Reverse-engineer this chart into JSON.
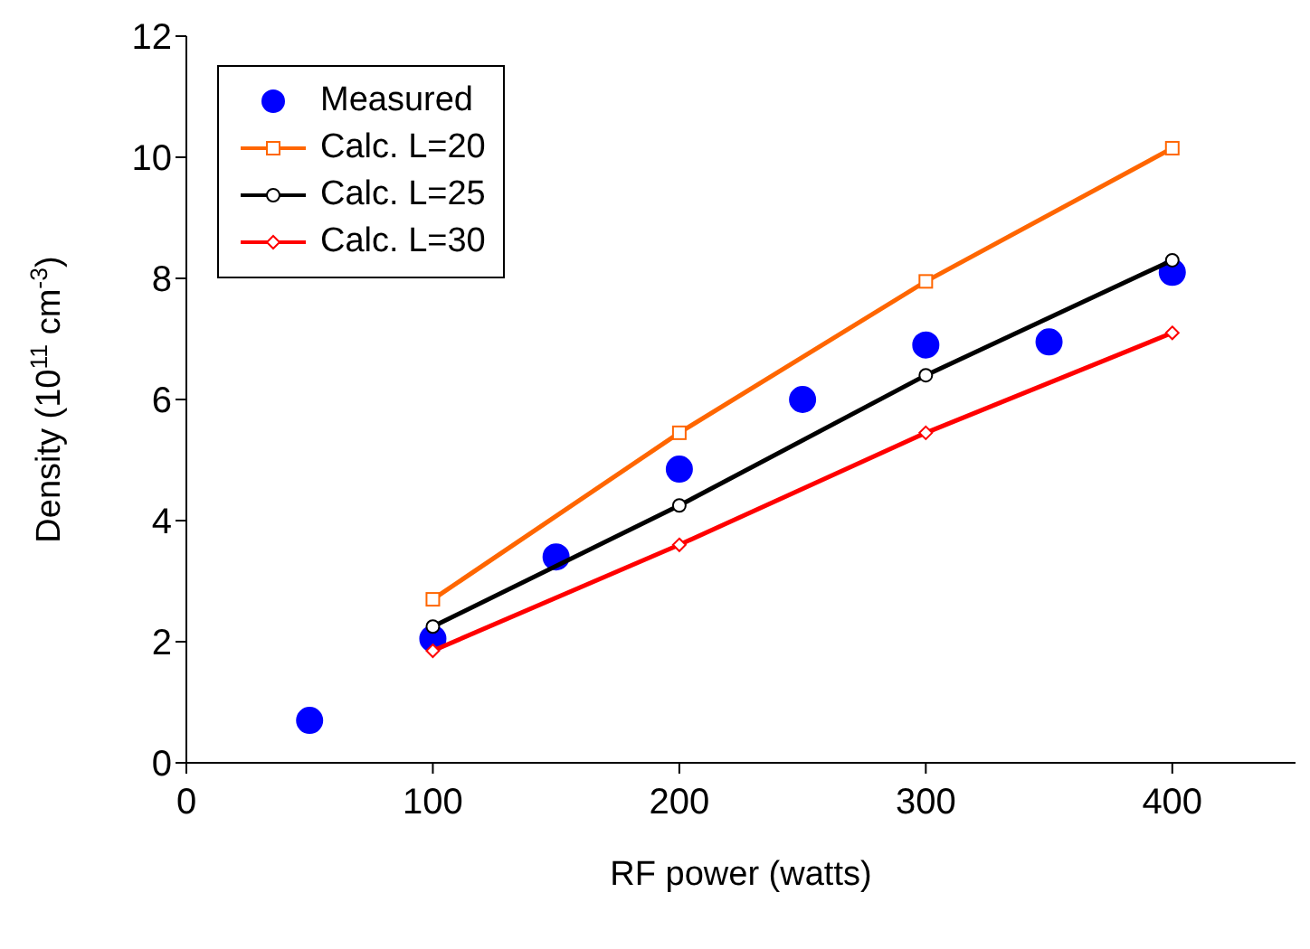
{
  "chart_data": {
    "type": "scatter",
    "xlabel": "RF power (watts)",
    "ylabel": "Density (10$^{11}$ cm$^{-3}$)",
    "xlim": [
      0,
      450
    ],
    "xticks": [
      0,
      100,
      200,
      300,
      400
    ],
    "ylim": [
      0,
      12
    ],
    "yticks": [
      0,
      2,
      4,
      6,
      8,
      10,
      12
    ],
    "grid": false,
    "legend": "top left",
    "series": [
      {
        "name": "Measured",
        "type": "scatter",
        "color": "#0000ff",
        "marker": "circle",
        "x": [
          50,
          100,
          150,
          200,
          250,
          300,
          350,
          400
        ],
        "values": [
          0.7,
          2.05,
          3.4,
          4.85,
          6.0,
          6.9,
          6.95,
          8.1
        ]
      },
      {
        "name": "Calc. L=20",
        "type": "line",
        "color": "#ff6600",
        "marker": "square",
        "x": [
          100,
          200,
          300,
          400
        ],
        "values": [
          2.7,
          5.45,
          7.95,
          10.15
        ]
      },
      {
        "name": "Calc. L=25",
        "type": "line",
        "color": "#000000",
        "marker": "circle",
        "x": [
          100,
          200,
          300,
          400
        ],
        "values": [
          2.25,
          4.25,
          6.4,
          8.3
        ]
      },
      {
        "name": "Calc. L=30",
        "type": "line",
        "color": "#ff0000",
        "marker": "diamond",
        "x": [
          100,
          200,
          300,
          400
        ],
        "values": [
          1.85,
          3.6,
          5.45,
          7.1
        ]
      }
    ]
  }
}
